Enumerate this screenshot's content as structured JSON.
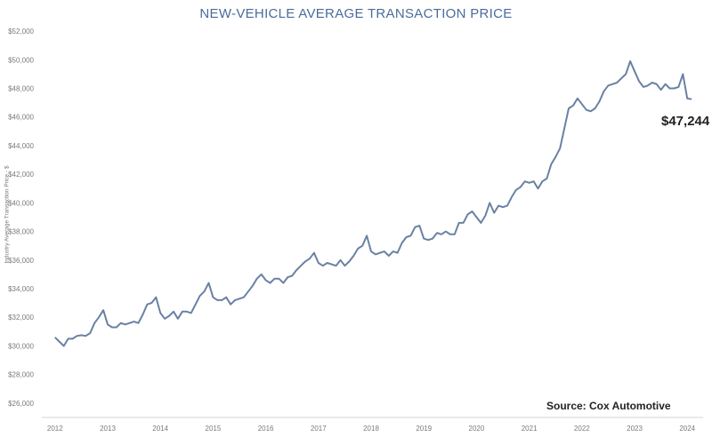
{
  "chart_data": {
    "type": "line",
    "title": "NEW-VEHICLE AVERAGE TRANSACTION PRICE",
    "ylabel": "Industry Average Transaction Price - $",
    "xlabel": "",
    "ylim": [
      25000,
      52500
    ],
    "xlim": [
      2011.75,
      2024.3
    ],
    "y_ticks": [
      26000,
      28000,
      30000,
      32000,
      34000,
      36000,
      38000,
      40000,
      42000,
      44000,
      46000,
      48000,
      50000,
      52000
    ],
    "y_tick_labels": [
      "$26,000",
      "$28,000",
      "$30,000",
      "$32,000",
      "$34,000",
      "$36,000",
      "$38,000",
      "$40,000",
      "$42,000",
      "$44,000",
      "$46,000",
      "$48,000",
      "$50,000",
      "$52,000"
    ],
    "x_ticks": [
      2012,
      2013,
      2014,
      2015,
      2016,
      2017,
      2018,
      2019,
      2020,
      2021,
      2022,
      2023,
      2024
    ],
    "x_tick_labels": [
      "2012",
      "2013",
      "2014",
      "2015",
      "2016",
      "2017",
      "2018",
      "2019",
      "2020",
      "2021",
      "2022",
      "2023",
      "2024"
    ],
    "grid": false,
    "series": [
      {
        "name": "",
        "color": "#6a81a3",
        "x": [
          "2012-01",
          "2012-02",
          "2012-03",
          "2012-04",
          "2012-05",
          "2012-06",
          "2012-07",
          "2012-08",
          "2012-09",
          "2012-10",
          "2012-11",
          "2012-12",
          "2013-01",
          "2013-02",
          "2013-03",
          "2013-04",
          "2013-05",
          "2013-06",
          "2013-07",
          "2013-08",
          "2013-09",
          "2013-10",
          "2013-11",
          "2013-12",
          "2014-01",
          "2014-02",
          "2014-03",
          "2014-04",
          "2014-05",
          "2014-06",
          "2014-07",
          "2014-08",
          "2014-09",
          "2014-10",
          "2014-11",
          "2014-12",
          "2015-01",
          "2015-02",
          "2015-03",
          "2015-04",
          "2015-05",
          "2015-06",
          "2015-07",
          "2015-08",
          "2015-09",
          "2015-10",
          "2015-11",
          "2015-12",
          "2016-01",
          "2016-02",
          "2016-03",
          "2016-04",
          "2016-05",
          "2016-06",
          "2016-07",
          "2016-08",
          "2016-09",
          "2016-10",
          "2016-11",
          "2016-12",
          "2017-01",
          "2017-02",
          "2017-03",
          "2017-04",
          "2017-05",
          "2017-06",
          "2017-07",
          "2017-08",
          "2017-09",
          "2017-10",
          "2017-11",
          "2017-12",
          "2018-01",
          "2018-02",
          "2018-03",
          "2018-04",
          "2018-05",
          "2018-06",
          "2018-07",
          "2018-08",
          "2018-09",
          "2018-10",
          "2018-11",
          "2018-12",
          "2019-01",
          "2019-02",
          "2019-03",
          "2019-04",
          "2019-05",
          "2019-06",
          "2019-07",
          "2019-08",
          "2019-09",
          "2019-10",
          "2019-11",
          "2019-12",
          "2020-01",
          "2020-02",
          "2020-03",
          "2020-04",
          "2020-05",
          "2020-06",
          "2020-07",
          "2020-08",
          "2020-09",
          "2020-10",
          "2020-11",
          "2020-12",
          "2021-01",
          "2021-02",
          "2021-03",
          "2021-04",
          "2021-05",
          "2021-06",
          "2021-07",
          "2021-08",
          "2021-09",
          "2021-10",
          "2021-11",
          "2021-12",
          "2022-01",
          "2022-02",
          "2022-03",
          "2022-04",
          "2022-05",
          "2022-06",
          "2022-07",
          "2022-08",
          "2022-09",
          "2022-10",
          "2022-11",
          "2022-12",
          "2023-01",
          "2023-02",
          "2023-03",
          "2023-04",
          "2023-05",
          "2023-06",
          "2023-07",
          "2023-08",
          "2023-09",
          "2023-10",
          "2023-11",
          "2023-12",
          "2024-01",
          "2024-02"
        ],
        "values": [
          30600,
          30300,
          30000,
          30500,
          30500,
          30700,
          30750,
          30700,
          30900,
          31600,
          32000,
          32500,
          31500,
          31300,
          31300,
          31600,
          31500,
          31600,
          31700,
          31600,
          32200,
          32900,
          33000,
          33400,
          32300,
          31900,
          32100,
          32400,
          31900,
          32400,
          32400,
          32300,
          32900,
          33500,
          33800,
          34400,
          33400,
          33200,
          33200,
          33400,
          32900,
          33200,
          33300,
          33400,
          33800,
          34200,
          34700,
          35000,
          34600,
          34400,
          34700,
          34700,
          34400,
          34800,
          34900,
          35300,
          35600,
          35900,
          36100,
          36500,
          35800,
          35600,
          35800,
          35700,
          35600,
          36000,
          35600,
          35900,
          36300,
          36800,
          37000,
          37700,
          36600,
          36400,
          36500,
          36600,
          36300,
          36600,
          36500,
          37200,
          37600,
          37700,
          38300,
          38400,
          37500,
          37400,
          37500,
          37900,
          37800,
          38000,
          37800,
          37800,
          38600,
          38600,
          39200,
          39400,
          39000,
          38600,
          39100,
          40000,
          39300,
          39800,
          39700,
          39800,
          40400,
          40900,
          41100,
          41500,
          41400,
          41500,
          41000,
          41500,
          41700,
          42700,
          43200,
          43800,
          45200,
          46600,
          46800,
          47300,
          46900,
          46500,
          46400,
          46600,
          47100,
          47800,
          48200,
          48300,
          48400,
          48700,
          49000,
          49900,
          49200,
          48500,
          48100,
          48200,
          48400,
          48300,
          47900,
          48300,
          48000,
          48000,
          48100,
          49000,
          47300,
          47244
        ]
      }
    ],
    "annotations": [
      {
        "text": "$47,244",
        "x": "2024-02",
        "y": 47244
      }
    ],
    "source": "Source: Cox Automotive"
  }
}
